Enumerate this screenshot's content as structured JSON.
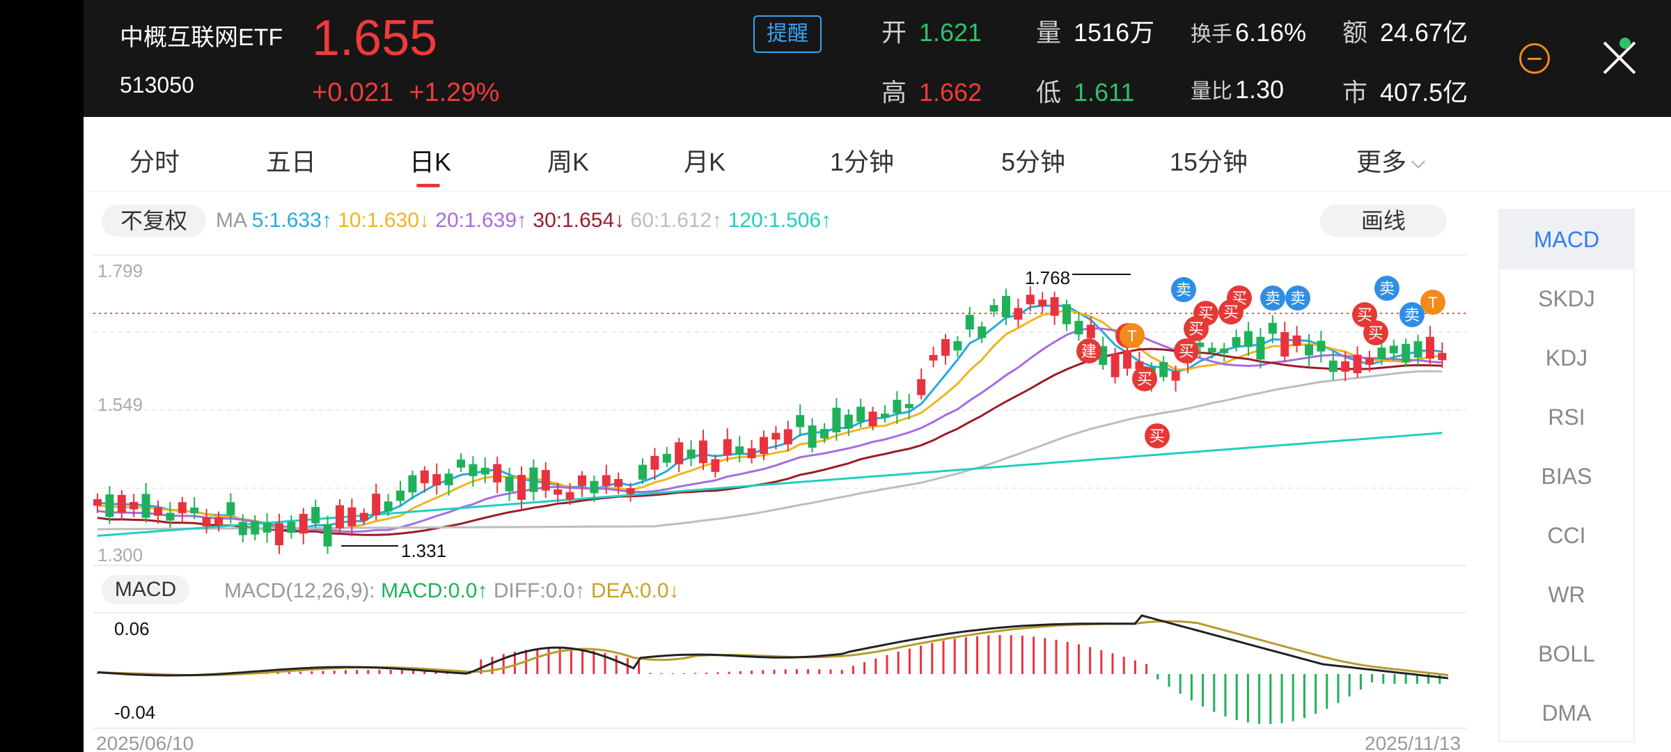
{
  "header": {
    "name": "中概互联网ETF",
    "code": "513050",
    "price": "1.655",
    "change": "+0.021",
    "change_pct": "+1.29%",
    "alert_label": "提醒",
    "open_label": "开",
    "open_value": "1.621",
    "high_label": "高",
    "high_value": "1.662",
    "volume_label": "量",
    "volume_value": "1516万",
    "low_label": "低",
    "low_value": "1.611",
    "turnover_label": "换手",
    "turnover_value": "6.16%",
    "vol_ratio_label": "量比",
    "vol_ratio_value": "1.30",
    "amount_label": "额",
    "amount_value": "24.67亿",
    "mktcap_label": "市",
    "mktcap_value": "407.5亿"
  },
  "tabs": [
    "分时",
    "五日",
    "日K",
    "周K",
    "月K",
    "1分钟",
    "5分钟",
    "15分钟",
    "更多"
  ],
  "active_tab": 2,
  "toolbar": {
    "adjust_label": "不复权",
    "draw_label": "画线",
    "ma_prefix": "MA",
    "ma": [
      {
        "label": "5:1.633↑",
        "color": "#26a9e0"
      },
      {
        "label": "10:1.630↓",
        "color": "#f0b41e"
      },
      {
        "label": "20:1.639↑",
        "color": "#a66ce0"
      },
      {
        "label": "30:1.654↓",
        "color": "#9a1c28"
      },
      {
        "label": "60:1.612↑",
        "color": "#bdbdbd"
      },
      {
        "label": "120:1.506↑",
        "color": "#1fcfbf"
      }
    ]
  },
  "price_axis": {
    "top": "1.799",
    "mid": "1.549",
    "bottom": "1.300"
  },
  "annotations": {
    "high": "1.768",
    "low": "1.331"
  },
  "signals": {
    "buy": "买",
    "sell": "卖",
    "build": "建",
    "t": "T"
  },
  "macd": {
    "label": "MACD",
    "params": "MACD(12,26,9):",
    "macd_value": "MACD:0.0↑",
    "diff_value": "DIFF:0.0↑",
    "dea_value": "DEA:0.0↓",
    "axis_top": "0.06",
    "axis_bottom": "-0.04"
  },
  "dates": {
    "start": "2025/06/10",
    "end": "2025/11/13"
  },
  "indicators": [
    "MACD",
    "SKDJ",
    "KDJ",
    "RSI",
    "BIAS",
    "CCI",
    "WR",
    "BOLL",
    "DMA"
  ],
  "active_indicator": 0,
  "colors": {
    "up": "#e8333f",
    "down": "#1fb15a",
    "accent": "#2f7ef0"
  }
}
